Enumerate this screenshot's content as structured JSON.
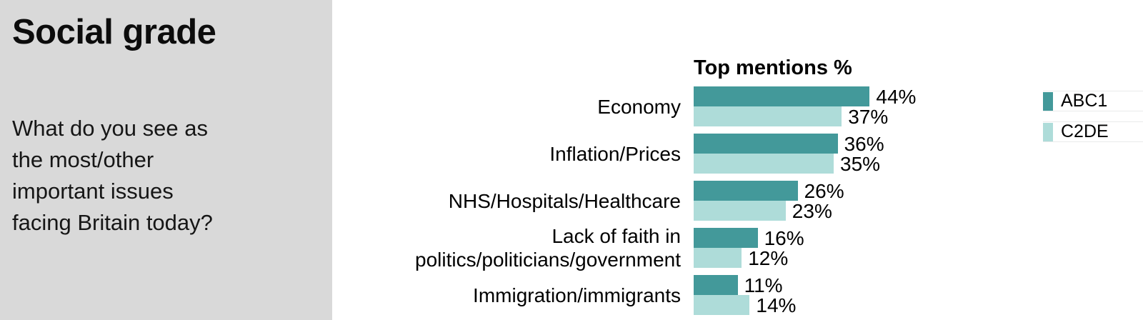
{
  "left_panel": {
    "title": "Social grade",
    "question_lines": [
      "What do you see as",
      "the most/other",
      "important issues",
      "facing Britain today?"
    ]
  },
  "chart_data": {
    "type": "bar",
    "orientation": "horizontal",
    "title": "Top mentions %",
    "categories": [
      "Economy",
      "Inflation/Prices",
      "NHS/Hospitals/Healthcare",
      "Lack of faith in politics/politicians/government",
      "Immigration/immigrants"
    ],
    "series": [
      {
        "name": "ABC1",
        "color": "#43999A",
        "values": [
          44,
          36,
          26,
          16,
          11
        ]
      },
      {
        "name": "C2DE",
        "color": "#AEDCD9",
        "values": [
          37,
          35,
          23,
          12,
          14
        ]
      }
    ],
    "value_suffix": "%",
    "xlim": [
      0,
      50
    ],
    "grid": false,
    "legend_position": "right"
  },
  "colors": {
    "panel_bg": "#d9d9d9",
    "abc1": "#43999A",
    "c2de": "#AEDCD9",
    "legend_border": "#e9ebeb"
  }
}
